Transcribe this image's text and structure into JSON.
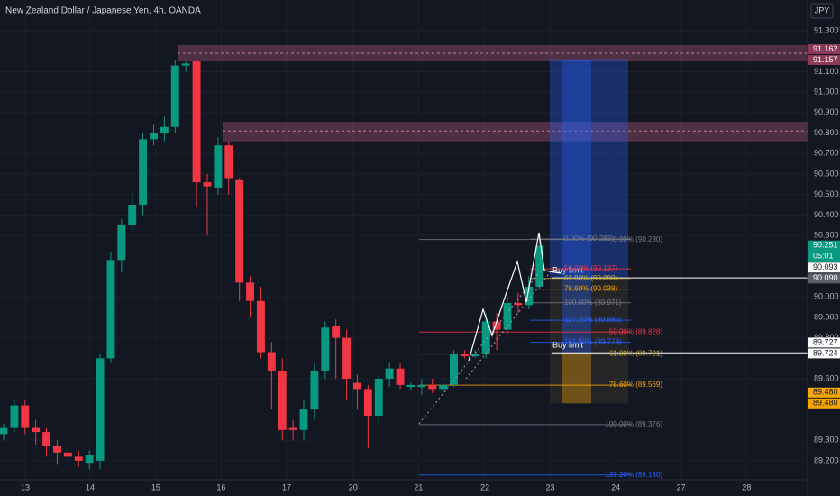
{
  "chart_data": {
    "type": "candlestick",
    "title": "New Zealand Dollar / Japanese Yen, 4h, OANDA",
    "currency": "JPY",
    "x": [
      0,
      1,
      2,
      3,
      4,
      5,
      6,
      7,
      8,
      9,
      10,
      11,
      12,
      13,
      14,
      15,
      16,
      17,
      18,
      19,
      20,
      21,
      22,
      23,
      24,
      25,
      26,
      27,
      28,
      29,
      30,
      31,
      32,
      33,
      34,
      35,
      36,
      37,
      38,
      39,
      40,
      41,
      42,
      43,
      44,
      45,
      46,
      47,
      48,
      49,
      50
    ],
    "open": [
      89.33,
      89.36,
      89.47,
      89.36,
      89.34,
      89.27,
      89.24,
      89.22,
      89.19,
      89.2,
      89.7,
      90.18,
      90.35,
      90.45,
      90.77,
      90.8,
      90.83,
      91.13,
      91.15,
      90.56,
      90.53,
      90.74,
      90.57,
      90.07,
      89.98,
      89.73,
      89.64,
      89.36,
      89.35,
      89.45,
      89.64,
      89.86,
      89.8,
      89.58,
      89.55,
      89.42,
      89.6,
      89.65,
      89.56,
      89.56,
      89.57,
      89.55,
      89.57,
      89.72,
      89.71,
      89.72,
      89.88,
      89.84,
      89.97,
      89.96,
      90.05
    ],
    "high": [
      89.38,
      89.5,
      89.5,
      89.4,
      89.36,
      89.3,
      89.26,
      89.25,
      89.25,
      89.72,
      90.22,
      90.38,
      90.52,
      90.8,
      90.84,
      90.88,
      91.16,
      91.15,
      91.16,
      90.6,
      90.78,
      90.76,
      90.58,
      90.1,
      90.05,
      89.78,
      89.7,
      89.4,
      89.5,
      89.68,
      89.88,
      89.89,
      89.84,
      89.62,
      89.57,
      89.62,
      89.68,
      89.68,
      89.58,
      89.6,
      89.6,
      89.6,
      89.74,
      89.74,
      89.74,
      89.92,
      89.92,
      90.0,
      90.02,
      90.1,
      90.3
    ],
    "low": [
      89.3,
      89.34,
      89.33,
      89.28,
      89.22,
      89.18,
      89.18,
      89.17,
      89.16,
      89.16,
      89.68,
      90.12,
      90.32,
      90.4,
      90.74,
      90.76,
      90.8,
      91.1,
      90.44,
      90.3,
      90.5,
      90.5,
      89.98,
      89.9,
      89.7,
      89.45,
      89.3,
      89.3,
      89.3,
      89.4,
      89.6,
      89.6,
      89.5,
      89.45,
      89.26,
      89.38,
      89.56,
      89.55,
      89.54,
      89.52,
      89.53,
      89.54,
      89.56,
      89.7,
      89.7,
      89.7,
      89.74,
      89.82,
      89.92,
      89.94,
      90.04
    ],
    "close": [
      89.36,
      89.47,
      89.36,
      89.34,
      89.27,
      89.24,
      89.22,
      89.2,
      89.23,
      89.7,
      90.18,
      90.35,
      90.45,
      90.77,
      90.8,
      90.83,
      91.13,
      91.14,
      90.56,
      90.54,
      90.74,
      90.58,
      90.07,
      89.98,
      89.73,
      89.64,
      89.35,
      89.35,
      89.45,
      89.64,
      89.85,
      89.8,
      89.6,
      89.55,
      89.42,
      89.6,
      89.65,
      89.57,
      89.57,
      89.57,
      89.55,
      89.57,
      89.72,
      89.71,
      89.72,
      89.88,
      89.84,
      89.97,
      89.96,
      90.05,
      90.25
    ],
    "up_color": "#089981",
    "down_color": "#f23645",
    "xlim": [
      -0.336,
      75.0
    ],
    "xticks": [
      {
        "value": 2.02,
        "label": "13"
      },
      {
        "value": 8.07,
        "label": "14"
      },
      {
        "value": 14.2,
        "label": "15"
      },
      {
        "value": 20.3,
        "label": "16"
      },
      {
        "value": 26.4,
        "label": "17"
      },
      {
        "value": 32.6,
        "label": "20"
      },
      {
        "value": 38.7,
        "label": "21"
      },
      {
        "value": 44.9,
        "label": "22"
      },
      {
        "value": 51.0,
        "label": "23"
      },
      {
        "value": 57.1,
        "label": "24"
      },
      {
        "value": 63.2,
        "label": "27"
      },
      {
        "value": 69.3,
        "label": "28"
      }
    ],
    "ylim": [
      89.107,
      91.353
    ],
    "yticks": [
      {
        "value": 91.3,
        "label": "91.300"
      },
      {
        "value": 91.1,
        "label": "91.100"
      },
      {
        "value": 91.0,
        "label": "91.000"
      },
      {
        "value": 90.9,
        "label": "90.900"
      },
      {
        "value": 90.8,
        "label": "90.800"
      },
      {
        "value": 90.7,
        "label": "90.700"
      },
      {
        "value": 90.6,
        "label": "90.600"
      },
      {
        "value": 90.5,
        "label": "90.500"
      },
      {
        "value": 90.4,
        "label": "90.400"
      },
      {
        "value": 90.3,
        "label": "90.300"
      },
      {
        "value": 90.0,
        "label": "90.000"
      },
      {
        "value": 89.9,
        "label": "89.900"
      },
      {
        "value": 89.8,
        "label": "89.800"
      },
      {
        "value": 89.6,
        "label": "89.600"
      },
      {
        "value": 89.3,
        "label": "89.300"
      },
      {
        "value": 89.2,
        "label": "89.200"
      }
    ],
    "grid": true,
    "zones": [
      {
        "top": 91.23,
        "bottom": 91.15,
        "mid": 91.19
      },
      {
        "top": 90.855,
        "bottom": 90.76,
        "mid": 90.81
      }
    ],
    "fib_sets": [
      {
        "levels": [
          {
            "label": "0.00% (90.280)",
            "price": 90.28,
            "color": "#787b86"
          },
          {
            "label": "50.00% (89.828)",
            "price": 89.828,
            "color": "#f23645"
          },
          {
            "label": "61.80% (89.721)",
            "price": 89.721,
            "color": "#c9b037"
          },
          {
            "label": "78.60% (89.569)",
            "price": 89.569,
            "color": "#f7a600"
          },
          {
            "label": "100.00% (89.376)",
            "price": 89.376,
            "color": "#787b86"
          },
          {
            "label": "127.20% (89.130)",
            "price": 89.13,
            "color": "#2962ff"
          }
        ]
      },
      {
        "levels": [
          {
            "label": "0.00% (90.283)",
            "price": 90.283,
            "color": "#787b86"
          },
          {
            "label": "50.00% (90.137)",
            "price": 90.137,
            "color": "#f23645"
          },
          {
            "label": "61.80% (90.090)",
            "price": 90.09,
            "color": "#c9b037"
          },
          {
            "label": "78.60% (90.038)",
            "price": 90.038,
            "color": "#f7a600"
          },
          {
            "label": "100.00% (89.971)",
            "price": 89.971,
            "color": "#787b86"
          },
          {
            "label": "127.20% (89.886)",
            "price": 89.886,
            "color": "#2962ff"
          },
          {
            "label": "161.80% (89.778)",
            "price": 89.778,
            "color": "#2962ff"
          }
        ]
      }
    ],
    "positions": [
      {
        "label": "Buy limit",
        "entry": 90.093,
        "target": 91.162,
        "stop": 89.48
      },
      {
        "label": "Buy limit",
        "entry": 89.727,
        "target": 91.157,
        "stop": 89.48
      }
    ],
    "price_tags": [
      {
        "value": 91.162,
        "label": "91.162",
        "color": "#8c3a57"
      },
      {
        "value": 91.157,
        "label": "91.157",
        "color": "#8c3a57"
      },
      {
        "value": 90.251,
        "label": "90.251",
        "color": "#089981"
      },
      {
        "value": 90.093,
        "label": "90.093",
        "color": "#ffffff"
      },
      {
        "value": 90.09,
        "label": "90.090",
        "color": "#5d606b"
      },
      {
        "value": 89.727,
        "label": "89.727",
        "color": "#ffffff"
      },
      {
        "value": 89.724,
        "label": "89.724",
        "color": "#ffffff"
      },
      {
        "value": 89.48,
        "label": "89.480",
        "color": "#f7a600"
      },
      {
        "value": 89.48,
        "label": "89.480",
        "color": "#f7a600"
      }
    ],
    "countdown": "05:01"
  }
}
